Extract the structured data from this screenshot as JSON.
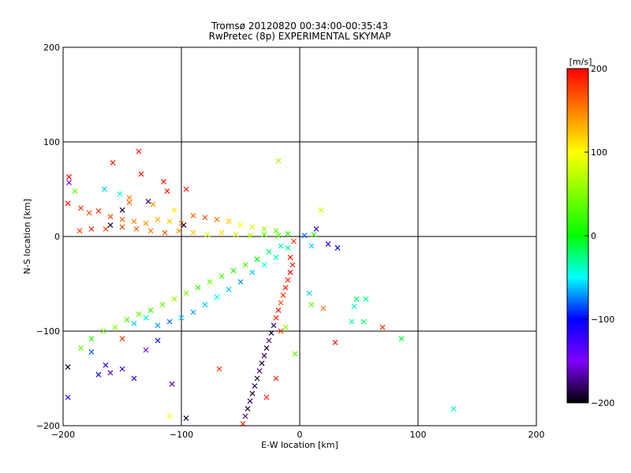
{
  "chart_data": {
    "type": "scatter",
    "title": "Tromsø 20120820 00:34:00-00:35:43",
    "subtitle": "RwPretec (8p) EXPERIMENTAL SKYMAP",
    "xlabel": "E-W location [km]",
    "ylabel": "N-S location [km]",
    "xlim": [
      -200,
      200
    ],
    "ylim": [
      -200,
      200
    ],
    "xticks": [
      -200,
      -100,
      0,
      100,
      200
    ],
    "yticks": [
      -200,
      -100,
      0,
      100,
      200
    ],
    "grid": true,
    "colorbar": {
      "label": "[m/s]",
      "range": [
        -200,
        200
      ],
      "ticks": [
        200,
        100,
        0,
        -100,
        -200
      ],
      "colors": [
        "#ff0000",
        "#ff8000",
        "#ffff00",
        "#80ff00",
        "#00ff00",
        "#00ffff",
        "#0000ff",
        "#8000ff",
        "#000000"
      ]
    },
    "points": [
      {
        "x": -195,
        "y": 63,
        "v": 200
      },
      {
        "x": -195,
        "y": 57,
        "v": -150
      },
      {
        "x": -196,
        "y": 35,
        "v": 200
      },
      {
        "x": -190,
        "y": 48,
        "v": 40
      },
      {
        "x": -165,
        "y": 50,
        "v": -60
      },
      {
        "x": -158,
        "y": 78,
        "v": 190
      },
      {
        "x": -152,
        "y": 45,
        "v": -40
      },
      {
        "x": -136,
        "y": 90,
        "v": 190
      },
      {
        "x": -134,
        "y": 66,
        "v": 190
      },
      {
        "x": -115,
        "y": 58,
        "v": 190
      },
      {
        "x": -112,
        "y": 48,
        "v": 190
      },
      {
        "x": -96,
        "y": 50,
        "v": 190
      },
      {
        "x": -128,
        "y": 37,
        "v": -180
      },
      {
        "x": -144,
        "y": 41,
        "v": 150
      },
      {
        "x": -185,
        "y": 30,
        "v": 180
      },
      {
        "x": -178,
        "y": 25,
        "v": 170
      },
      {
        "x": -170,
        "y": 27,
        "v": 180
      },
      {
        "x": -160,
        "y": 21,
        "v": 170
      },
      {
        "x": -150,
        "y": 18,
        "v": 160
      },
      {
        "x": -140,
        "y": 16,
        "v": 150
      },
      {
        "x": -130,
        "y": 14,
        "v": 140
      },
      {
        "x": -120,
        "y": 18,
        "v": 130
      },
      {
        "x": -110,
        "y": 16,
        "v": 120
      },
      {
        "x": -100,
        "y": 14,
        "v": 140
      },
      {
        "x": -90,
        "y": 22,
        "v": 160
      },
      {
        "x": -80,
        "y": 20,
        "v": 170
      },
      {
        "x": -70,
        "y": 18,
        "v": 150
      },
      {
        "x": -60,
        "y": 16,
        "v": 120
      },
      {
        "x": -50,
        "y": 12,
        "v": 100
      },
      {
        "x": -40,
        "y": 10,
        "v": 80
      },
      {
        "x": -30,
        "y": 8,
        "v": 60
      },
      {
        "x": -20,
        "y": 6,
        "v": 40
      },
      {
        "x": -10,
        "y": 3,
        "v": 20
      },
      {
        "x": -186,
        "y": 6,
        "v": 170
      },
      {
        "x": -176,
        "y": 8,
        "v": 180
      },
      {
        "x": -164,
        "y": 8,
        "v": 170
      },
      {
        "x": -150,
        "y": 10,
        "v": 180
      },
      {
        "x": -138,
        "y": 8,
        "v": 160
      },
      {
        "x": -126,
        "y": 6,
        "v": 150
      },
      {
        "x": -114,
        "y": 4,
        "v": 170
      },
      {
        "x": -102,
        "y": 6,
        "v": 140
      },
      {
        "x": -90,
        "y": 4,
        "v": 120
      },
      {
        "x": -78,
        "y": 2,
        "v": 90
      },
      {
        "x": -66,
        "y": 4,
        "v": 110
      },
      {
        "x": -54,
        "y": 2,
        "v": 80
      },
      {
        "x": -42,
        "y": 1,
        "v": 60
      },
      {
        "x": -30,
        "y": 2,
        "v": 40
      },
      {
        "x": -18,
        "y": 1,
        "v": 20
      },
      {
        "x": -124,
        "y": 34,
        "v": 140
      },
      {
        "x": -106,
        "y": 28,
        "v": 110
      },
      {
        "x": -98,
        "y": 12,
        "v": -190
      },
      {
        "x": -150,
        "y": 28,
        "v": -190
      },
      {
        "x": -160,
        "y": 12,
        "v": -190
      },
      {
        "x": -144,
        "y": 36,
        "v": 160
      },
      {
        "x": -18,
        "y": 80,
        "v": 60
      },
      {
        "x": 18,
        "y": 28,
        "v": 80
      },
      {
        "x": 14,
        "y": 8,
        "v": -120
      },
      {
        "x": 12,
        "y": 2,
        "v": 20
      },
      {
        "x": 4,
        "y": 1,
        "v": -80
      },
      {
        "x": 24,
        "y": -8,
        "v": -120
      },
      {
        "x": 32,
        "y": -12,
        "v": -100
      },
      {
        "x": 10,
        "y": -10,
        "v": -60
      },
      {
        "x": -5,
        "y": -5,
        "v": 180
      },
      {
        "x": -185,
        "y": -118,
        "v": 40
      },
      {
        "x": -176,
        "y": -108,
        "v": 20
      },
      {
        "x": -166,
        "y": -100,
        "v": 40
      },
      {
        "x": -156,
        "y": -96,
        "v": 50
      },
      {
        "x": -146,
        "y": -88,
        "v": 30
      },
      {
        "x": -136,
        "y": -82,
        "v": 40
      },
      {
        "x": -126,
        "y": -78,
        "v": 20
      },
      {
        "x": -116,
        "y": -72,
        "v": 40
      },
      {
        "x": -106,
        "y": -66,
        "v": 60
      },
      {
        "x": -96,
        "y": -60,
        "v": 40
      },
      {
        "x": -86,
        "y": -54,
        "v": 20
      },
      {
        "x": -76,
        "y": -48,
        "v": 40
      },
      {
        "x": -66,
        "y": -42,
        "v": 30
      },
      {
        "x": -56,
        "y": -36,
        "v": 10
      },
      {
        "x": -46,
        "y": -30,
        "v": 20
      },
      {
        "x": -36,
        "y": -24,
        "v": 0
      },
      {
        "x": -26,
        "y": -16,
        "v": -20
      },
      {
        "x": -16,
        "y": -10,
        "v": -40
      },
      {
        "x": -140,
        "y": -92,
        "v": -60
      },
      {
        "x": -130,
        "y": -86,
        "v": -40
      },
      {
        "x": -120,
        "y": -94,
        "v": -70
      },
      {
        "x": -110,
        "y": -90,
        "v": -80
      },
      {
        "x": -100,
        "y": -86,
        "v": -60
      },
      {
        "x": -90,
        "y": -80,
        "v": -70
      },
      {
        "x": -80,
        "y": -72,
        "v": -60
      },
      {
        "x": -70,
        "y": -64,
        "v": -50
      },
      {
        "x": -60,
        "y": -56,
        "v": -60
      },
      {
        "x": -50,
        "y": -48,
        "v": -70
      },
      {
        "x": -40,
        "y": -38,
        "v": -60
      },
      {
        "x": -30,
        "y": -30,
        "v": -50
      },
      {
        "x": -20,
        "y": -22,
        "v": -40
      },
      {
        "x": -10,
        "y": -12,
        "v": -30
      },
      {
        "x": -150,
        "y": -140,
        "v": -120
      },
      {
        "x": -140,
        "y": -150,
        "v": -100
      },
      {
        "x": -130,
        "y": -120,
        "v": -140
      },
      {
        "x": -160,
        "y": -144,
        "v": -160
      },
      {
        "x": -170,
        "y": -146,
        "v": -100
      },
      {
        "x": -164,
        "y": -136,
        "v": -120
      },
      {
        "x": -176,
        "y": -122,
        "v": -80
      },
      {
        "x": -120,
        "y": -110,
        "v": -100
      },
      {
        "x": -196,
        "y": -170,
        "v": -110
      },
      {
        "x": -196,
        "y": -138,
        "v": -190
      },
      {
        "x": -150,
        "y": -108,
        "v": 180
      },
      {
        "x": -108,
        "y": -156,
        "v": -160
      },
      {
        "x": -96,
        "y": -192,
        "v": -190
      },
      {
        "x": -110,
        "y": -190,
        "v": 100
      },
      {
        "x": -68,
        "y": -140,
        "v": 180
      },
      {
        "x": -8,
        "y": -22,
        "v": 190
      },
      {
        "x": -6,
        "y": -30,
        "v": 190
      },
      {
        "x": -8,
        "y": -38,
        "v": 200
      },
      {
        "x": -10,
        "y": -46,
        "v": 180
      },
      {
        "x": -12,
        "y": -54,
        "v": 190
      },
      {
        "x": -14,
        "y": -62,
        "v": 180
      },
      {
        "x": -16,
        "y": -70,
        "v": 170
      },
      {
        "x": -18,
        "y": -78,
        "v": 190
      },
      {
        "x": -20,
        "y": -86,
        "v": 180
      },
      {
        "x": -22,
        "y": -94,
        "v": -180
      },
      {
        "x": -24,
        "y": -102,
        "v": -190
      },
      {
        "x": -26,
        "y": -110,
        "v": -170
      },
      {
        "x": -28,
        "y": -118,
        "v": -190
      },
      {
        "x": -30,
        "y": -126,
        "v": -180
      },
      {
        "x": -32,
        "y": -134,
        "v": -190
      },
      {
        "x": -34,
        "y": -142,
        "v": -170
      },
      {
        "x": -36,
        "y": -150,
        "v": -190
      },
      {
        "x": -38,
        "y": -158,
        "v": -180
      },
      {
        "x": -40,
        "y": -166,
        "v": -190
      },
      {
        "x": -42,
        "y": -174,
        "v": -180
      },
      {
        "x": -44,
        "y": -182,
        "v": -190
      },
      {
        "x": -46,
        "y": -190,
        "v": -170
      },
      {
        "x": -48,
        "y": -198,
        "v": 180
      },
      {
        "x": -16,
        "y": -100,
        "v": 180
      },
      {
        "x": -12,
        "y": -96,
        "v": 60
      },
      {
        "x": -4,
        "y": -124,
        "v": 40
      },
      {
        "x": -20,
        "y": -150,
        "v": 190
      },
      {
        "x": -28,
        "y": -170,
        "v": 190
      },
      {
        "x": 48,
        "y": -66,
        "v": -20
      },
      {
        "x": 56,
        "y": -66,
        "v": -30
      },
      {
        "x": 46,
        "y": -74,
        "v": -40
      },
      {
        "x": 54,
        "y": -90,
        "v": -20
      },
      {
        "x": 44,
        "y": -90,
        "v": -30
      },
      {
        "x": 70,
        "y": -96,
        "v": 180
      },
      {
        "x": 86,
        "y": -108,
        "v": -10
      },
      {
        "x": 130,
        "y": -182,
        "v": -40
      },
      {
        "x": 30,
        "y": -112,
        "v": 190
      },
      {
        "x": 20,
        "y": -76,
        "v": 150
      },
      {
        "x": 8,
        "y": -60,
        "v": -60
      },
      {
        "x": 10,
        "y": -72,
        "v": 40
      }
    ]
  }
}
